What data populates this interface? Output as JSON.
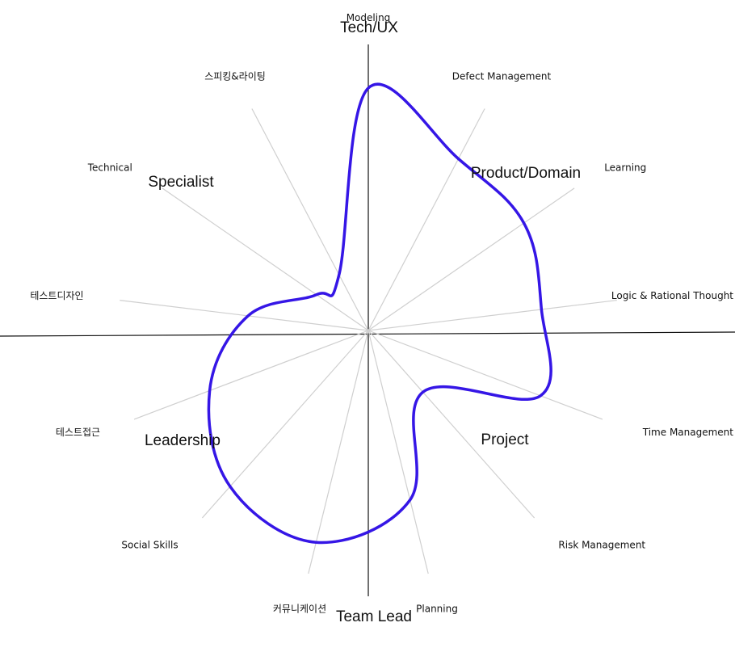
{
  "chart_data": {
    "type": "radar",
    "title": "",
    "scale": [
      0,
      5
    ],
    "line_color": "#3516e6",
    "spoke_color": "#cfcfcf",
    "axis_color": "#111111",
    "quadrants": [
      {
        "label": "Tech/UX"
      },
      {
        "label": "Product/Domain"
      },
      {
        "label": "Project"
      },
      {
        "label": "Team Lead"
      },
      {
        "label": "Leadership"
      },
      {
        "label": "Specialist"
      }
    ],
    "spokes": [
      {
        "label": "Modeling",
        "value": 5.0
      },
      {
        "label": "Defect Management",
        "value": 4.0
      },
      {
        "label": "Learning",
        "value": 3.9
      },
      {
        "label": "Logic & Rational Thought",
        "value": 3.6
      },
      {
        "label": "Time Management",
        "value": 3.8
      },
      {
        "label": "Risk Management",
        "value": 1.7
      },
      {
        "label": "Planning",
        "value": 3.6
      },
      {
        "label": "커뮤니케이션",
        "value": 4.5
      },
      {
        "label": "Social Skills",
        "value": 4.3
      },
      {
        "label": "테스트접근",
        "value": 3.5
      },
      {
        "label": "테스트디자인",
        "value": 2.5
      },
      {
        "label": "Technical",
        "value": 1.3
      },
      {
        "label": "스피킹&라이팅",
        "value": 1.3
      }
    ]
  }
}
